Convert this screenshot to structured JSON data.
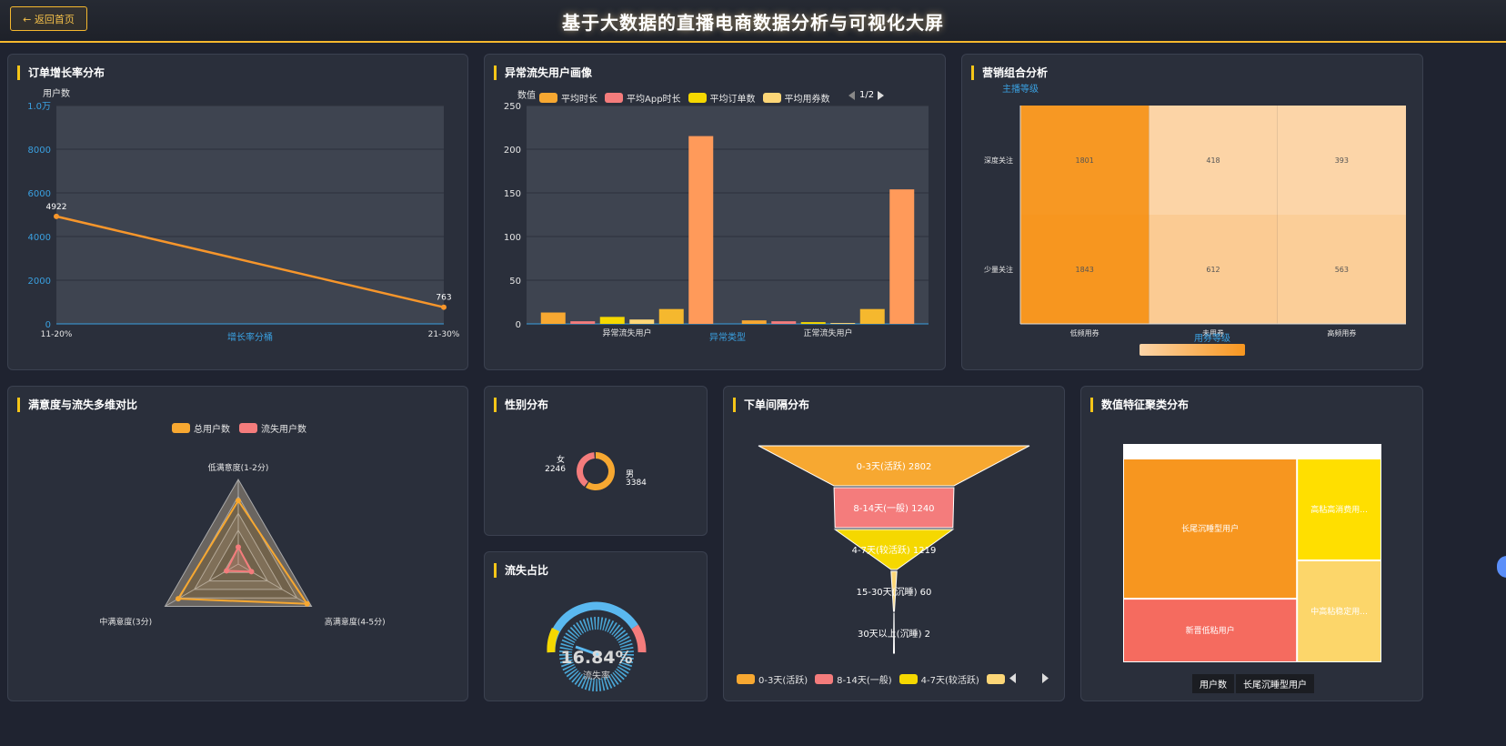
{
  "header": {
    "title": "基于大数据的直播电商数据分析与可视化大屏",
    "back_label": "← 返回首页"
  },
  "panels": {
    "order_growth": {
      "title": "订单增长率分布"
    },
    "churn_profile": {
      "title": "异常流失用户画像",
      "pager": "1/2"
    },
    "marketing": {
      "title": "营销组合分析"
    },
    "satisfaction": {
      "title": "满意度与流失多维对比"
    },
    "gender": {
      "title": "性别分布"
    },
    "churn_ratio": {
      "title": "流失占比",
      "value": "16.84%",
      "label": "流失率"
    },
    "order_interval": {
      "title": "下单间隔分布"
    },
    "cluster": {
      "title": "数值特征聚类分布",
      "breadcrumb": [
        "用户数",
        "长尾沉睡型用户"
      ]
    }
  },
  "chart_data": [
    {
      "id": "order_growth",
      "type": "line",
      "x": [
        "11-20%",
        "21-30%"
      ],
      "series": [
        {
          "values": [
            4922,
            763
          ]
        }
      ],
      "xlabel": "增长率分桶",
      "ylabel": "用户数",
      "y_ticks": [
        "0",
        "2000",
        "4000",
        "6000",
        "8000",
        "1.0万"
      ],
      "data_labels": [
        "4922",
        "763"
      ],
      "ylim": [
        0,
        10000
      ],
      "color": "#f7962b"
    },
    {
      "id": "churn_profile",
      "type": "bar",
      "categories": [
        "异常流失用户",
        "正常流失用户"
      ],
      "series": [
        {
          "name": "平均时长",
          "values": [
            13,
            4
          ],
          "color": "#f7a831"
        },
        {
          "name": "平均App时长",
          "values": [
            3,
            3
          ],
          "color": "#f47c7c"
        },
        {
          "name": "平均订单数",
          "values": [
            8,
            2
          ],
          "color": "#f5d800"
        },
        {
          "name": "平均用券数",
          "values": [
            5,
            1
          ],
          "color": "#fcd677"
        },
        {
          "name": "",
          "values": [
            17,
            17
          ],
          "color": "#f5b82e"
        },
        {
          "name": "",
          "values": [
            215,
            154
          ],
          "color": "#ff9a5a"
        }
      ],
      "xlabel": "异常类型",
      "ylabel": "数值",
      "y_ticks": [
        "0",
        "50",
        "100",
        "150",
        "200",
        "250"
      ],
      "ylim": [
        0,
        250
      ]
    },
    {
      "id": "marketing",
      "type": "heatmap",
      "x": [
        "低频用券",
        "未用券",
        "高频用券"
      ],
      "y": [
        "深度关注",
        "少量关注"
      ],
      "values": [
        [
          1801,
          418,
          393
        ],
        [
          1843,
          612,
          563
        ]
      ],
      "xlabel": "用券等级",
      "ylabel": "主播等级",
      "colors": [
        "#fcd5a8",
        "#f7961f"
      ]
    },
    {
      "id": "satisfaction",
      "type": "radar",
      "indicators": [
        "低满意度(1-2分)",
        "高满意度(4-5分)",
        "中满意度(3分)"
      ],
      "series": [
        {
          "name": "总用户数",
          "values": [
            0.75,
            0.94,
            0.82
          ],
          "color": "#f7a831"
        },
        {
          "name": "流失用户数",
          "values": [
            0.2,
            0.18,
            0.16
          ],
          "color": "#f47c7c"
        }
      ]
    },
    {
      "id": "gender",
      "type": "pie",
      "labels": [
        "女",
        "男"
      ],
      "values": [
        2246,
        3384
      ],
      "colors": [
        "#f47c7c",
        "#f7a831"
      ]
    },
    {
      "id": "order_interval",
      "type": "funnel",
      "labels": [
        "0-3天(活跃)",
        "8-14天(一般)",
        "4-7天(较活跃)",
        "15-30天(沉睡)",
        "30天以上(沉睡)"
      ],
      "values": [
        2802,
        1240,
        1219,
        60,
        2
      ],
      "data_labels": [
        "0-3天(活跃) 2802",
        "8-14天(一般) 1240",
        "4-7天(较活跃) 1219",
        "15-30天(沉睡) 60",
        "30天以上(沉睡) 2"
      ],
      "colors": [
        "#f7a831",
        "#f47c7c",
        "#f5d800",
        "#fcd677",
        "#ffe9b0"
      ]
    },
    {
      "id": "cluster",
      "type": "treemap",
      "labels": [
        "长尾沉睡型用户",
        "新晋低粘用户",
        "高粘高消费用...",
        "中高粘稳定用..."
      ],
      "values": [
        2000,
        900,
        700,
        700
      ],
      "colors": [
        "#f7961f",
        "#f56b5f",
        "#ffdf00",
        "#fcd66a"
      ]
    }
  ]
}
